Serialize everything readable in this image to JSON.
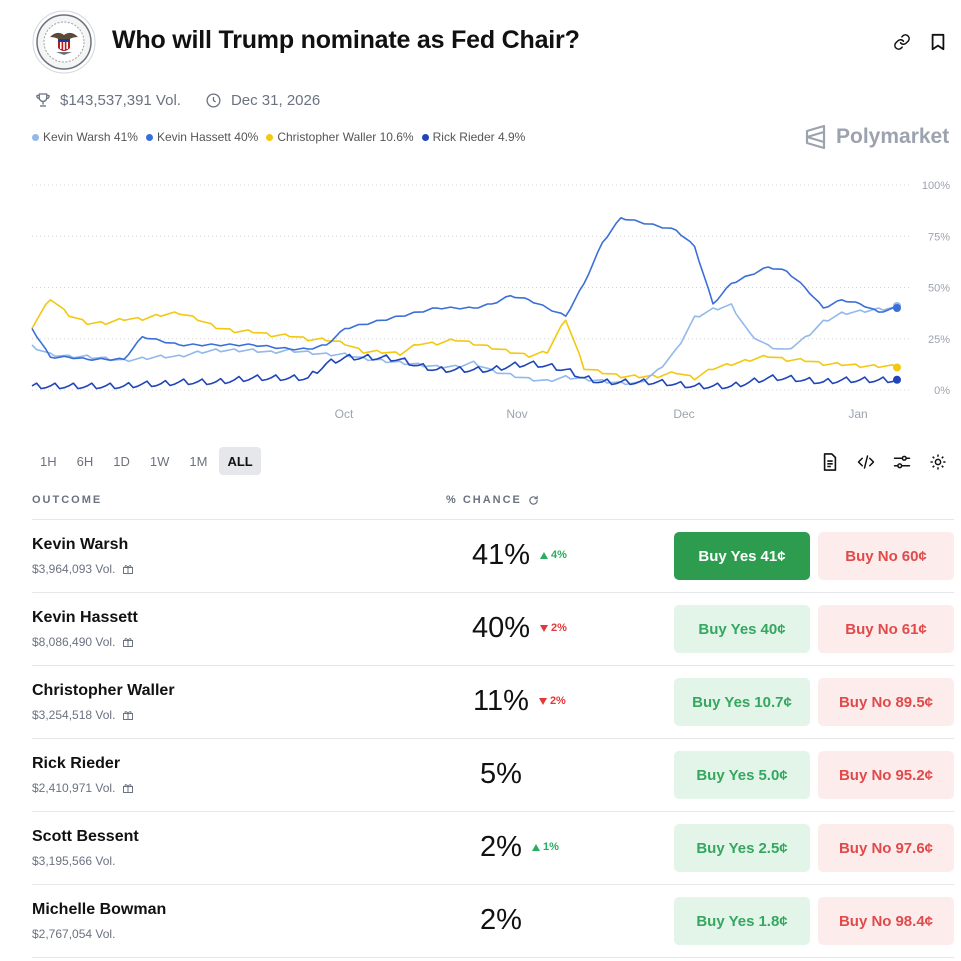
{
  "header": {
    "title": "Who will Trump nominate as Fed Chair?",
    "volume": "$143,537,391 Vol.",
    "end_date": "Dec 31, 2026"
  },
  "brand": "Polymarket",
  "legend": [
    {
      "label": "Kevin Warsh 41%",
      "color": "#93b8ea"
    },
    {
      "label": "Kevin Hassett 40%",
      "color": "#3b6fd8"
    },
    {
      "label": "Christopher Waller 10.6%",
      "color": "#f2c811"
    },
    {
      "label": "Rick Rieder 4.9%",
      "color": "#1f45b8"
    }
  ],
  "ranges": [
    "1H",
    "6H",
    "1D",
    "1W",
    "1M",
    "ALL"
  ],
  "active_range": "ALL",
  "table": {
    "col_outcome": "OUTCOME",
    "col_chance": "% CHANCE",
    "rows": [
      {
        "name": "Kevin Warsh",
        "vol": "$3,964,093 Vol.",
        "gift": true,
        "pct": "41%",
        "chg": "4%",
        "dir": "up",
        "yes_label": "Buy Yes",
        "yes_price": "41¢",
        "no_label": "Buy No",
        "no_price": "60¢",
        "primary": true
      },
      {
        "name": "Kevin Hassett",
        "vol": "$8,086,490 Vol.",
        "gift": true,
        "pct": "40%",
        "chg": "2%",
        "dir": "down",
        "yes_label": "Buy Yes",
        "yes_price": "40¢",
        "no_label": "Buy No",
        "no_price": "61¢",
        "primary": false
      },
      {
        "name": "Christopher Waller",
        "vol": "$3,254,518 Vol.",
        "gift": true,
        "pct": "11%",
        "chg": "2%",
        "dir": "down",
        "yes_label": "Buy Yes",
        "yes_price": "10.7¢",
        "no_label": "Buy No",
        "no_price": "89.5¢",
        "primary": false
      },
      {
        "name": "Rick Rieder",
        "vol": "$2,410,971 Vol.",
        "gift": true,
        "pct": "5%",
        "chg": "",
        "dir": "",
        "yes_label": "Buy Yes",
        "yes_price": "5.0¢",
        "no_label": "Buy No",
        "no_price": "95.2¢",
        "primary": false
      },
      {
        "name": "Scott Bessent",
        "vol": "$3,195,566 Vol.",
        "gift": false,
        "pct": "2%",
        "chg": "1%",
        "dir": "up",
        "yes_label": "Buy Yes",
        "yes_price": "2.5¢",
        "no_label": "Buy No",
        "no_price": "97.6¢",
        "primary": false
      },
      {
        "name": "Michelle Bowman",
        "vol": "$2,767,054 Vol.",
        "gift": false,
        "pct": "2%",
        "chg": "",
        "dir": "",
        "yes_label": "Buy Yes",
        "yes_price": "1.8¢",
        "no_label": "Buy No",
        "no_price": "98.4¢",
        "primary": false
      }
    ]
  },
  "chart_data": {
    "type": "line",
    "x_ticks": [
      "Oct",
      "Nov",
      "Dec",
      "Jan"
    ],
    "y_ticks": [
      "100%",
      "75%",
      "50%",
      "25%",
      "0%"
    ],
    "ylim": [
      0,
      100
    ],
    "grid": true,
    "series": [
      {
        "name": "Kevin Warsh",
        "color": "#93b8ea",
        "values": [
          22,
          18,
          17,
          17,
          16,
          15,
          16,
          17,
          17,
          19,
          20,
          20,
          20,
          19,
          20,
          19,
          18,
          18,
          16,
          15,
          14,
          13,
          12,
          12,
          14,
          10,
          8,
          6,
          5,
          7,
          6,
          5,
          4,
          4,
          10,
          20,
          36,
          40,
          42,
          28,
          22,
          20,
          26,
          34,
          38,
          39,
          40,
          41
        ]
      },
      {
        "name": "Kevin Hassett",
        "color": "#3b6fd8",
        "values": [
          30,
          16,
          16,
          15,
          15,
          15,
          26,
          24,
          22,
          22,
          22,
          22,
          22,
          21,
          20,
          20,
          22,
          30,
          32,
          34,
          36,
          38,
          40,
          40,
          40,
          42,
          46,
          44,
          40,
          36,
          52,
          72,
          84,
          82,
          80,
          78,
          70,
          42,
          52,
          56,
          60,
          58,
          50,
          40,
          44,
          42,
          38,
          40
        ]
      },
      {
        "name": "Christopher Waller",
        "color": "#f2c811",
        "values": [
          30,
          44,
          36,
          32,
          32,
          34,
          34,
          36,
          37,
          34,
          30,
          28,
          28,
          26,
          26,
          24,
          24,
          22,
          18,
          18,
          17,
          22,
          22,
          24,
          22,
          20,
          18,
          16,
          18,
          34,
          10,
          8,
          6,
          6,
          6,
          8,
          5,
          10,
          12,
          14,
          16,
          14,
          14,
          12,
          12,
          11,
          11,
          11
        ]
      },
      {
        "name": "Rick Rieder",
        "color": "#1f45b8",
        "values": [
          2,
          2,
          2,
          2,
          2,
          2,
          3,
          3,
          4,
          4,
          4,
          5,
          6,
          6,
          6,
          6,
          13,
          16,
          16,
          16,
          15,
          12,
          10,
          10,
          10,
          10,
          12,
          13,
          12,
          10,
          6,
          4,
          4,
          4,
          4,
          3,
          2,
          2,
          2,
          4,
          6,
          6,
          5,
          4,
          5,
          5,
          5,
          5
        ]
      }
    ]
  }
}
